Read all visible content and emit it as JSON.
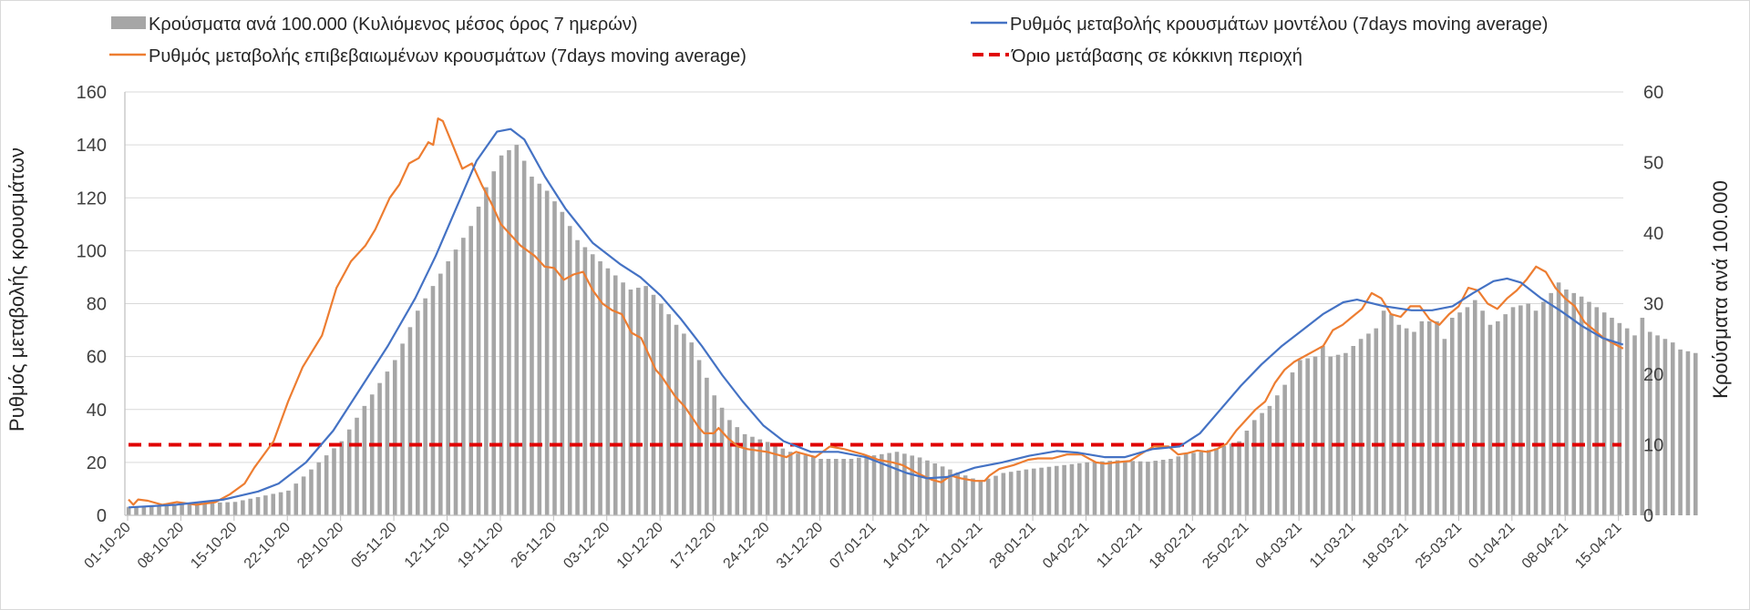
{
  "chart_data": {
    "type": "bar+line",
    "title": "",
    "ylabel_left": "Ρυθμός μεταβολής κρουσμάτων",
    "ylabel_right": "Κρούσματα ανά 100.000",
    "ylim_left": [
      0,
      160
    ],
    "ylim_right": [
      0,
      60
    ],
    "yticks_left": [
      0,
      20,
      40,
      60,
      80,
      100,
      120,
      140,
      160
    ],
    "yticks_right": [
      0,
      10,
      20,
      30,
      40,
      50,
      60
    ],
    "grid": true,
    "x_start": "01-10-20",
    "x_end": "15-04-21",
    "x_tick_labels": [
      "01-10-20",
      "08-10-20",
      "15-10-20",
      "22-10-20",
      "29-10-20",
      "05-11-20",
      "12-11-20",
      "19-11-20",
      "26-11-20",
      "03-12-20",
      "10-12-20",
      "17-12-20",
      "24-12-20",
      "31-12-20",
      "07-01-21",
      "14-01-21",
      "21-01-21",
      "28-01-21",
      "04-02-21",
      "11-02-21",
      "18-02-21",
      "25-02-21",
      "04-03-21",
      "11-03-21",
      "18-03-21",
      "25-03-21",
      "01-04-21",
      "08-04-21",
      "15-04-21"
    ],
    "legend": {
      "placement": "top",
      "entries": [
        {
          "name": "Κρούσματα ανά 100.000 (Κυλιόμενος μέσος όρος 7 ημερών)",
          "style": "bar",
          "color": "#a6a6a6"
        },
        {
          "name": "Ρυθμός μεταβολής κρουσμάτων μοντέλου (7days moving average)",
          "style": "line",
          "color": "#4472c4"
        },
        {
          "name": "Ρυθμός μεταβολής επιβεβαιωμένων κρουσμάτων (7days moving average)",
          "style": "line",
          "color": "#ed7d31"
        },
        {
          "name": "Όριο μετάβασης σε κόκκινη περιοχή",
          "style": "dashed",
          "color": "#e00000"
        }
      ]
    },
    "series": [
      {
        "name": "Κρούσματα ανά 100.000 (Κυλιόμενος μέσος όρος 7 ημερών)",
        "axis": "right",
        "kind": "bar",
        "color": "#a6a6a6",
        "knots": [
          [
            0,
            1.2
          ],
          [
            7,
            1.6
          ],
          [
            14,
            1.9
          ],
          [
            21,
            3.5
          ],
          [
            24,
            6.5
          ],
          [
            28,
            10.5
          ],
          [
            31,
            15.5
          ],
          [
            35,
            22
          ],
          [
            38,
            29
          ],
          [
            42,
            36
          ],
          [
            45,
            41
          ],
          [
            47,
            46.5
          ],
          [
            49,
            51
          ],
          [
            51,
            52.5
          ],
          [
            53,
            48
          ],
          [
            55,
            46
          ],
          [
            57,
            43
          ],
          [
            59,
            39
          ],
          [
            61,
            37
          ],
          [
            63,
            35
          ],
          [
            65,
            33
          ],
          [
            66,
            32
          ],
          [
            68,
            32.5
          ],
          [
            70,
            30
          ],
          [
            72,
            27
          ],
          [
            74,
            24.5
          ],
          [
            75,
            22
          ],
          [
            77,
            17
          ],
          [
            79,
            13.5
          ],
          [
            81,
            11.5
          ],
          [
            84,
            10.4
          ],
          [
            87,
            9
          ],
          [
            91,
            8
          ],
          [
            95,
            8
          ],
          [
            98,
            8.5
          ],
          [
            101,
            9
          ],
          [
            104,
            8.2
          ],
          [
            108,
            6.5
          ],
          [
            112,
            4.8
          ],
          [
            115,
            6
          ],
          [
            118,
            6.5
          ],
          [
            122,
            7
          ],
          [
            126,
            7.5
          ],
          [
            130,
            7.8
          ],
          [
            134,
            7.6
          ],
          [
            137,
            8
          ],
          [
            139,
            8.7
          ],
          [
            141,
            9
          ],
          [
            143,
            9.5
          ],
          [
            146,
            10.5
          ],
          [
            148,
            13.5
          ],
          [
            150,
            15.5
          ],
          [
            152,
            18.5
          ],
          [
            154,
            22
          ],
          [
            156,
            22.5
          ],
          [
            157,
            24
          ],
          [
            158,
            22.5
          ],
          [
            160,
            23
          ],
          [
            162,
            25
          ],
          [
            164,
            26.5
          ],
          [
            165,
            29
          ],
          [
            166,
            28.5
          ],
          [
            167,
            27
          ],
          [
            169,
            26
          ],
          [
            170,
            27.5
          ],
          [
            172,
            27.5
          ],
          [
            173,
            25
          ],
          [
            174,
            28
          ],
          [
            176,
            29.5
          ],
          [
            177,
            30.5
          ],
          [
            178,
            29
          ],
          [
            179,
            27
          ],
          [
            180,
            27.5
          ],
          [
            182,
            29.5
          ],
          [
            184,
            30
          ],
          [
            185,
            29
          ],
          [
            187,
            31.5
          ],
          [
            188,
            33
          ],
          [
            189,
            32
          ],
          [
            191,
            31
          ],
          [
            193,
            29.5
          ],
          [
            195,
            28
          ],
          [
            197,
            26.5
          ],
          [
            198,
            25.5
          ],
          [
            199,
            28
          ],
          [
            200,
            26
          ],
          [
            202,
            25
          ],
          [
            203,
            24.5
          ],
          [
            204,
            23.5
          ],
          [
            206,
            23
          ]
        ]
      },
      {
        "name": "Ρυθμός μεταβολής κρουσμάτων μοντέλου (7days moving average)",
        "axis": "left",
        "kind": "line",
        "color": "#4472c4",
        "knots": [
          [
            0,
            3
          ],
          [
            7,
            4
          ],
          [
            14,
            6
          ],
          [
            19,
            9
          ],
          [
            22,
            12
          ],
          [
            26,
            20
          ],
          [
            30,
            32
          ],
          [
            34,
            48
          ],
          [
            38,
            64
          ],
          [
            42,
            82
          ],
          [
            45,
            98
          ],
          [
            48,
            116
          ],
          [
            51,
            134
          ],
          [
            54,
            145
          ],
          [
            56,
            146
          ],
          [
            58,
            142
          ],
          [
            61,
            128
          ],
          [
            64,
            116
          ],
          [
            68,
            103
          ],
          [
            72,
            95
          ],
          [
            75,
            90
          ],
          [
            78,
            83
          ],
          [
            81,
            74
          ],
          [
            84,
            64
          ],
          [
            87,
            53
          ],
          [
            90,
            43
          ],
          [
            93,
            34
          ],
          [
            96,
            28
          ],
          [
            100,
            24
          ],
          [
            104,
            24
          ],
          [
            108,
            22
          ],
          [
            111,
            19
          ],
          [
            114,
            16
          ],
          [
            117,
            14
          ],
          [
            120,
            14.5
          ],
          [
            124,
            18
          ],
          [
            128,
            20
          ],
          [
            132,
            22.5
          ],
          [
            136,
            24.3
          ],
          [
            139,
            23.7
          ],
          [
            143,
            22
          ],
          [
            146,
            22
          ],
          [
            150,
            25
          ],
          [
            154,
            26
          ],
          [
            157,
            31
          ],
          [
            160,
            40
          ],
          [
            163,
            49
          ],
          [
            166,
            57
          ],
          [
            169,
            64
          ],
          [
            172,
            70
          ],
          [
            175,
            76
          ],
          [
            178,
            80.5
          ],
          [
            180,
            81.5
          ],
          [
            184,
            79
          ],
          [
            188,
            77.5
          ],
          [
            191,
            77.5
          ],
          [
            194,
            79
          ],
          [
            197,
            84
          ],
          [
            200,
            88.5
          ],
          [
            202,
            89.5
          ],
          [
            204,
            88
          ],
          [
            207,
            82
          ],
          [
            210,
            77
          ],
          [
            213,
            71.5
          ],
          [
            216,
            67
          ],
          [
            219,
            64.5
          ]
        ]
      },
      {
        "name": "Ρυθμός μεταβολής επιβεβαιωμένων κρουσμάτων (7days moving average)",
        "axis": "left",
        "kind": "line",
        "color": "#ed7d31",
        "knots": [
          [
            0,
            6
          ],
          [
            1,
            4
          ],
          [
            2,
            6
          ],
          [
            4,
            5.5
          ],
          [
            7,
            4
          ],
          [
            10,
            5
          ],
          [
            14,
            4
          ],
          [
            18,
            5
          ],
          [
            21,
            8
          ],
          [
            24,
            12
          ],
          [
            26,
            18
          ],
          [
            30,
            28
          ],
          [
            33,
            43
          ],
          [
            36,
            56
          ],
          [
            40,
            68
          ],
          [
            43,
            86
          ],
          [
            46,
            96
          ],
          [
            49,
            102
          ],
          [
            51,
            108
          ],
          [
            54,
            120
          ],
          [
            56,
            125
          ],
          [
            58,
            133
          ],
          [
            60,
            135
          ],
          [
            62,
            141
          ],
          [
            63,
            140
          ],
          [
            64,
            150
          ],
          [
            65,
            149
          ],
          [
            67,
            140
          ],
          [
            69,
            131
          ],
          [
            71,
            133
          ],
          [
            73,
            125
          ],
          [
            75,
            118
          ],
          [
            77,
            110
          ],
          [
            79,
            106
          ],
          [
            81,
            102
          ],
          [
            84,
            98
          ],
          [
            86,
            94
          ],
          [
            88,
            93.5
          ],
          [
            90,
            89
          ],
          [
            92,
            91
          ],
          [
            94,
            92
          ],
          [
            96,
            85
          ],
          [
            98,
            80
          ],
          [
            100,
            77.5
          ],
          [
            102,
            76
          ],
          [
            104,
            69
          ],
          [
            106,
            67
          ],
          [
            107,
            63
          ],
          [
            109,
            55
          ],
          [
            110,
            53
          ],
          [
            113,
            45
          ],
          [
            115,
            41
          ],
          [
            118,
            33
          ],
          [
            119,
            31
          ],
          [
            121,
            31
          ],
          [
            122,
            33
          ],
          [
            124,
            29
          ],
          [
            126,
            26
          ],
          [
            128,
            25
          ],
          [
            130,
            24.5
          ],
          [
            132,
            24
          ],
          [
            134,
            23
          ],
          [
            136,
            22
          ],
          [
            138,
            24
          ],
          [
            140,
            23
          ],
          [
            142,
            22
          ],
          [
            145,
            26
          ],
          [
            148,
            25
          ],
          [
            152,
            23
          ],
          [
            155,
            21
          ],
          [
            158,
            20
          ],
          [
            160,
            19
          ],
          [
            163,
            16
          ],
          [
            166,
            13.5
          ],
          [
            168,
            12.5
          ],
          [
            170,
            15
          ],
          [
            172,
            14
          ],
          [
            175,
            13
          ],
          [
            177,
            13
          ],
          [
            178,
            15
          ],
          [
            180,
            17.5
          ],
          [
            183,
            19
          ],
          [
            186,
            21
          ],
          [
            188,
            21.5
          ],
          [
            191,
            21.5
          ],
          [
            194,
            23
          ],
          [
            197,
            23
          ],
          [
            200,
            20
          ],
          [
            202,
            19.5
          ],
          [
            204,
            20
          ],
          [
            207,
            20.5
          ],
          [
            210,
            24
          ],
          [
            212,
            26
          ],
          [
            215,
            26
          ],
          [
            217,
            23
          ],
          [
            219,
            23.5
          ],
          [
            221,
            24.5
          ],
          [
            223,
            24
          ],
          [
            225,
            25
          ],
          [
            227,
            27
          ],
          [
            229,
            32
          ],
          [
            231,
            36
          ],
          [
            233,
            40
          ],
          [
            235,
            43
          ],
          [
            237,
            50
          ],
          [
            239,
            55
          ],
          [
            241,
            58
          ],
          [
            243,
            60
          ],
          [
            245,
            62
          ],
          [
            247,
            64
          ],
          [
            249,
            70
          ],
          [
            251,
            72
          ],
          [
            253,
            75
          ],
          [
            255,
            78
          ],
          [
            257,
            84
          ],
          [
            259,
            82
          ],
          [
            261,
            76
          ],
          [
            263,
            75
          ],
          [
            265,
            79
          ],
          [
            267,
            79
          ],
          [
            269,
            74
          ],
          [
            271,
            72
          ],
          [
            273,
            76
          ],
          [
            275,
            79
          ],
          [
            277,
            86
          ],
          [
            279,
            85
          ],
          [
            281,
            80
          ],
          [
            283,
            78
          ],
          [
            285,
            82
          ],
          [
            287,
            85
          ],
          [
            289,
            89
          ],
          [
            291,
            94
          ],
          [
            293,
            92
          ],
          [
            295,
            86
          ],
          [
            297,
            82
          ],
          [
            299,
            79
          ],
          [
            301,
            73
          ],
          [
            303,
            70
          ],
          [
            305,
            67
          ],
          [
            307,
            65
          ],
          [
            309,
            63
          ]
        ]
      },
      {
        "name": "Όριο μετάβασης σε κόκκινη περιοχή",
        "axis": "right",
        "kind": "dashed-line",
        "color": "#e00000",
        "value": 10
      }
    ]
  }
}
